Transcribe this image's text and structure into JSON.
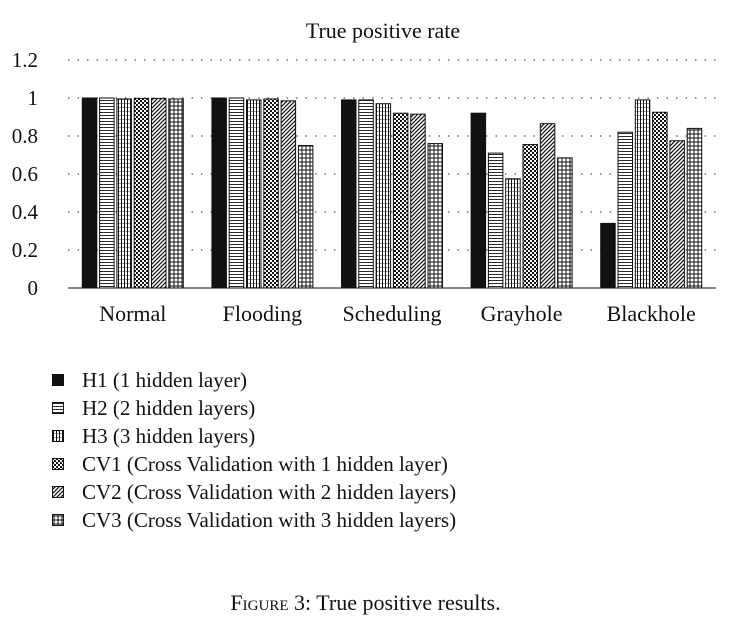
{
  "chart_data": {
    "type": "bar",
    "title": "True positive rate",
    "xlabel": "",
    "ylabel": "",
    "ylim": [
      0,
      1.2
    ],
    "yticks": [
      "0",
      "0.2",
      "0.4",
      "0.6",
      "0.8",
      "1",
      "1.2"
    ],
    "grid": "horizontal dotted",
    "legend_placement": "bottom",
    "categories": [
      "Normal",
      "Flooding",
      "Scheduling",
      "Grayhole",
      "Blackhole"
    ],
    "series": [
      {
        "name": "H1 (1 hidden layer)",
        "pattern": "solid",
        "values": [
          1.0,
          1.0,
          0.99,
          0.92,
          0.34
        ]
      },
      {
        "name": "H2 (2 hidden layers)",
        "pattern": "hlines",
        "values": [
          1.0,
          1.0,
          0.99,
          0.71,
          0.82
        ]
      },
      {
        "name": "H3 (3 hidden layers)",
        "pattern": "vlines",
        "values": [
          0.995,
          0.99,
          0.97,
          0.575,
          0.99
        ]
      },
      {
        "name": "CV1 (Cross Validation with 1 hidden layer)",
        "pattern": "checker",
        "values": [
          0.998,
          0.995,
          0.92,
          0.755,
          0.925
        ]
      },
      {
        "name": "CV2 (Cross Validation with 2 hidden layers)",
        "pattern": "diagonal",
        "values": [
          0.998,
          0.985,
          0.915,
          0.865,
          0.775
        ]
      },
      {
        "name": "CV3 (Cross Validation with 3 hidden layers)",
        "pattern": "grid",
        "values": [
          0.995,
          0.75,
          0.76,
          0.685,
          0.84
        ]
      }
    ]
  },
  "caption": {
    "label": "Figure 3",
    "text": ": True positive results."
  }
}
